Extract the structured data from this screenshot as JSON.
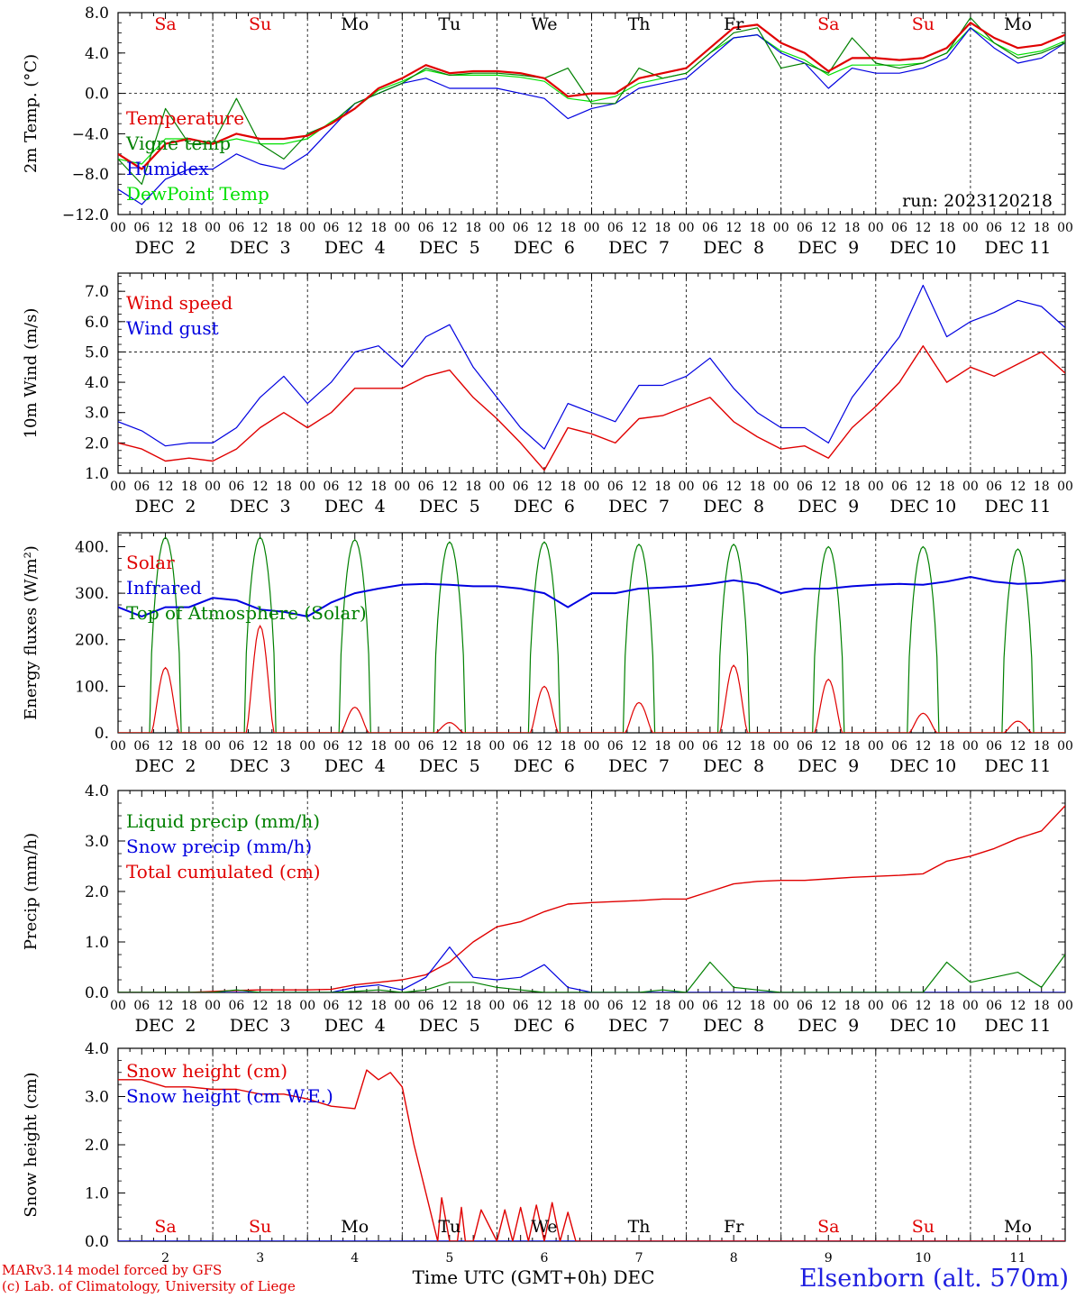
{
  "run_label": "run: 2023120218",
  "footer": {
    "line1": "MARv3.14 model forced by GFS",
    "line2": "(c) Lab. of Climatology, University of Liege"
  },
  "station": "Elsenborn (alt. 570m)",
  "xaxis_title": "Time UTC (GMT+0h) DEC",
  "hour_ticks": [
    "00",
    "06",
    "12",
    "18"
  ],
  "dates": [
    "DEC  2",
    "DEC  3",
    "DEC  4",
    "DEC  5",
    "DEC  6",
    "DEC  7",
    "DEC  8",
    "DEC  9",
    "DEC 10",
    "DEC 11"
  ],
  "day_numbers": [
    "2",
    "3",
    "4",
    "5",
    "6",
    "7",
    "8",
    "9",
    "10",
    "11"
  ],
  "weekdays": [
    {
      "label": "Sa",
      "color": "#e00000"
    },
    {
      "label": "Su",
      "color": "#e00000"
    },
    {
      "label": "Mo",
      "color": "#000000"
    },
    {
      "label": "Tu",
      "color": "#000000"
    },
    {
      "label": "We",
      "color": "#000000"
    },
    {
      "label": "Th",
      "color": "#000000"
    },
    {
      "label": "Fr",
      "color": "#000000"
    },
    {
      "label": "Sa",
      "color": "#e00000"
    },
    {
      "label": "Su",
      "color": "#e00000"
    },
    {
      "label": "Mo",
      "color": "#000000"
    }
  ],
  "chart_data": [
    {
      "type": "line",
      "ylabel": "2m Temp. (°C)",
      "ylim": [
        -12,
        8
      ],
      "yticks": [
        "8.0",
        "4.0",
        "0.0",
        "−4.0",
        "−8.0",
        "−12.0"
      ],
      "ytick_values": [
        8,
        4,
        0,
        -4,
        -8,
        -12
      ],
      "ref_line": 0,
      "x": [
        0,
        6,
        12,
        18,
        24,
        30,
        36,
        42,
        48,
        54,
        60,
        66,
        72,
        78,
        84,
        90,
        96,
        102,
        108,
        114,
        120,
        126,
        132,
        138,
        144,
        150,
        156,
        162,
        168,
        174,
        180,
        186,
        192,
        198,
        204,
        210,
        216,
        222,
        228,
        234,
        240
      ],
      "series": [
        {
          "name": "Temperature",
          "color": "#e00000",
          "width": 2.2,
          "values": [
            -6.0,
            -7.5,
            -5.0,
            -4.5,
            -5.0,
            -4.0,
            -4.5,
            -4.5,
            -4.2,
            -3.0,
            -1.5,
            0.5,
            1.5,
            2.8,
            2.0,
            2.2,
            2.2,
            2.0,
            1.5,
            -0.3,
            0.0,
            0.0,
            1.5,
            2.0,
            2.5,
            4.5,
            6.5,
            6.8,
            5.0,
            4.0,
            2.2,
            3.5,
            3.5,
            3.3,
            3.5,
            4.5,
            7.0,
            5.5,
            4.5,
            4.8,
            5.8
          ]
        },
        {
          "name": "Vigne temp",
          "color": "#008000",
          "width": 1.2,
          "values": [
            -6.5,
            -9.0,
            -1.5,
            -5.0,
            -5.0,
            -0.5,
            -5.0,
            -6.5,
            -4.0,
            -3.0,
            -1.0,
            0.0,
            1.0,
            2.5,
            1.8,
            2.0,
            2.0,
            1.8,
            1.5,
            2.5,
            -1.0,
            -1.0,
            2.5,
            1.5,
            2.0,
            4.0,
            6.0,
            6.5,
            2.5,
            3.0,
            2.0,
            5.5,
            3.0,
            2.5,
            3.0,
            4.0,
            7.5,
            5.0,
            3.5,
            4.0,
            5.0
          ]
        },
        {
          "name": "Humidex",
          "color": "#0000e0",
          "width": 1.2,
          "values": [
            -9.5,
            -11.0,
            -8.5,
            -7.5,
            -7.5,
            -6.0,
            -7.0,
            -7.5,
            -6.0,
            -3.5,
            -1.0,
            0.0,
            1.0,
            1.5,
            0.5,
            0.5,
            0.5,
            0.0,
            -0.5,
            -2.5,
            -1.5,
            -1.0,
            0.5,
            1.0,
            1.5,
            3.5,
            5.5,
            5.8,
            4.0,
            3.0,
            0.5,
            2.5,
            2.0,
            2.0,
            2.5,
            3.5,
            6.5,
            4.5,
            3.0,
            3.5,
            5.0
          ]
        },
        {
          "name": "DewPoint Temp",
          "color": "#00e000",
          "width": 1.2,
          "values": [
            -6.5,
            -7.0,
            -4.5,
            -4.5,
            -5.0,
            -4.5,
            -5.0,
            -5.0,
            -4.5,
            -2.8,
            -1.5,
            0.3,
            1.2,
            2.3,
            1.8,
            1.8,
            1.8,
            1.6,
            1.2,
            -0.5,
            -0.8,
            -0.3,
            1.0,
            1.5,
            2.0,
            4.0,
            5.5,
            5.8,
            4.2,
            3.3,
            1.8,
            2.8,
            2.8,
            2.8,
            3.0,
            4.0,
            6.5,
            5.0,
            3.8,
            4.2,
            5.2
          ]
        }
      ]
    },
    {
      "type": "line",
      "ylabel": "10m Wind (m/s)",
      "ylim": [
        1,
        7.6
      ],
      "yticks": [
        "7.0",
        "6.0",
        "5.0",
        "4.0",
        "3.0",
        "2.0",
        "1.0"
      ],
      "ytick_values": [
        7,
        6,
        5,
        4,
        3,
        2,
        1
      ],
      "ref_line": 5,
      "x": [
        0,
        6,
        12,
        18,
        24,
        30,
        36,
        42,
        48,
        54,
        60,
        66,
        72,
        78,
        84,
        90,
        96,
        102,
        108,
        114,
        120,
        126,
        132,
        138,
        144,
        150,
        156,
        162,
        168,
        174,
        180,
        186,
        192,
        198,
        204,
        210,
        216,
        222,
        228,
        234,
        240
      ],
      "series": [
        {
          "name": "Wind speed",
          "color": "#e00000",
          "width": 1.4,
          "values": [
            2.0,
            1.8,
            1.4,
            1.5,
            1.4,
            1.8,
            2.5,
            3.0,
            2.5,
            3.0,
            3.8,
            3.8,
            3.8,
            4.2,
            4.4,
            3.5,
            2.8,
            2.0,
            1.1,
            2.5,
            2.3,
            2.0,
            2.8,
            2.9,
            3.2,
            3.5,
            2.7,
            2.2,
            1.8,
            1.9,
            1.5,
            2.5,
            3.2,
            4.0,
            5.2,
            4.0,
            4.5,
            4.2,
            4.6,
            5.0,
            4.3
          ]
        },
        {
          "name": "Wind gust",
          "color": "#0000e0",
          "width": 1.2,
          "values": [
            2.7,
            2.4,
            1.9,
            2.0,
            2.0,
            2.5,
            3.5,
            4.2,
            3.3,
            4.0,
            5.0,
            5.2,
            4.5,
            5.5,
            5.9,
            4.5,
            3.5,
            2.5,
            1.8,
            3.3,
            3.0,
            2.7,
            3.9,
            3.9,
            4.2,
            4.8,
            3.8,
            3.0,
            2.5,
            2.5,
            2.0,
            3.5,
            4.5,
            5.5,
            7.2,
            5.5,
            6.0,
            6.3,
            6.7,
            6.5,
            5.8
          ]
        }
      ]
    },
    {
      "type": "line",
      "ylabel": "Energy fluxes (W/m²)",
      "ylim": [
        0,
        430
      ],
      "yticks": [
        "400.",
        "300.",
        "200.",
        "100.",
        "0."
      ],
      "ytick_values": [
        400,
        300,
        200,
        100,
        0
      ],
      "days": 10,
      "toa_peaks": [
        420,
        420,
        415,
        410,
        410,
        405,
        405,
        400,
        400,
        395
      ],
      "solar_peaks": [
        140,
        230,
        55,
        22,
        100,
        65,
        145,
        115,
        42,
        25
      ],
      "series": [
        {
          "name": "Solar",
          "color": "#e00000",
          "width": 1.2
        },
        {
          "name": "Infrared",
          "color": "#0000e0",
          "width": 2.0,
          "x": [
            0,
            6,
            12,
            18,
            24,
            30,
            36,
            42,
            48,
            54,
            60,
            66,
            72,
            78,
            84,
            90,
            96,
            102,
            108,
            114,
            120,
            126,
            132,
            138,
            144,
            150,
            156,
            162,
            168,
            174,
            180,
            186,
            192,
            198,
            204,
            210,
            216,
            222,
            228,
            234,
            240
          ],
          "values": [
            270,
            250,
            270,
            270,
            290,
            285,
            265,
            260,
            250,
            280,
            300,
            310,
            318,
            320,
            318,
            315,
            315,
            310,
            300,
            270,
            300,
            300,
            310,
            312,
            315,
            320,
            328,
            320,
            300,
            310,
            310,
            315,
            318,
            320,
            318,
            325,
            335,
            325,
            320,
            322,
            328
          ]
        },
        {
          "name": "Top of Atmosphere (Solar)",
          "color": "#008000",
          "width": 1.2
        }
      ]
    },
    {
      "type": "line",
      "ylabel": "Precip (mm/h)",
      "ylim": [
        0,
        4
      ],
      "yticks": [
        "4.0",
        "3.0",
        "2.0",
        "1.0",
        "0.0"
      ],
      "ytick_values": [
        4,
        3,
        2,
        1,
        0
      ],
      "x": [
        0,
        6,
        12,
        18,
        24,
        30,
        36,
        42,
        48,
        54,
        60,
        66,
        72,
        78,
        84,
        90,
        96,
        102,
        108,
        114,
        120,
        126,
        132,
        138,
        144,
        150,
        156,
        162,
        168,
        174,
        180,
        186,
        192,
        198,
        204,
        210,
        216,
        222,
        228,
        234,
        240
      ],
      "series": [
        {
          "name": "Liquid precip (mm/h)",
          "color": "#008000",
          "width": 1.2,
          "values": [
            0,
            0,
            0,
            0,
            0,
            0.05,
            0,
            0,
            0,
            0,
            0.02,
            0.05,
            0,
            0.05,
            0.2,
            0.2,
            0.1,
            0.05,
            0,
            0,
            0,
            0,
            0,
            0.05,
            0,
            0.6,
            0.1,
            0.05,
            0,
            0,
            0,
            0,
            0,
            0,
            0,
            0.6,
            0.2,
            0.3,
            0.4,
            0.1,
            0.75
          ]
        },
        {
          "name": "Snow precip (mm/h)",
          "color": "#0000e0",
          "width": 1.2,
          "values": [
            0,
            0,
            0,
            0,
            0,
            0,
            0,
            0,
            0,
            0,
            0.1,
            0.15,
            0.05,
            0.3,
            0.9,
            0.3,
            0.25,
            0.3,
            0.55,
            0.1,
            0,
            0,
            0,
            0,
            0,
            0,
            0,
            0,
            0,
            0,
            0,
            0,
            0,
            0,
            0,
            0,
            0,
            0,
            0,
            0,
            0
          ]
        },
        {
          "name": "Total cumulated (cm)",
          "color": "#e00000",
          "width": 1.4,
          "values": [
            0,
            0,
            0,
            0,
            0.02,
            0.04,
            0.05,
            0.05,
            0.05,
            0.06,
            0.15,
            0.2,
            0.25,
            0.35,
            0.6,
            1.0,
            1.3,
            1.4,
            1.6,
            1.75,
            1.78,
            1.8,
            1.82,
            1.85,
            1.85,
            2.0,
            2.15,
            2.2,
            2.22,
            2.22,
            2.25,
            2.28,
            2.3,
            2.32,
            2.35,
            2.6,
            2.7,
            2.85,
            3.05,
            3.2,
            3.7
          ]
        }
      ]
    },
    {
      "type": "line",
      "ylabel": "Snow height (cm)",
      "ylim": [
        0,
        4
      ],
      "yticks": [
        "4.0",
        "3.0",
        "2.0",
        "1.0",
        "0.0"
      ],
      "ytick_values": [
        4,
        3,
        2,
        1,
        0
      ],
      "series": [
        {
          "name": "Snow height (cm)",
          "color": "#e00000",
          "width": 1.4,
          "x": [
            0,
            6,
            12,
            18,
            24,
            30,
            36,
            42,
            48,
            54,
            60,
            63,
            66,
            69,
            72,
            75,
            78,
            81,
            82,
            84,
            86,
            87,
            88,
            90,
            92,
            96,
            98,
            100,
            102,
            104,
            106,
            108,
            110,
            112,
            114,
            116,
            120,
            180,
            240
          ],
          "values": [
            3.35,
            3.35,
            3.2,
            3.2,
            3.15,
            3.15,
            3.05,
            3.05,
            2.95,
            2.8,
            2.75,
            3.55,
            3.35,
            3.5,
            3.2,
            2.0,
            1.0,
            0.0,
            0.9,
            0,
            0,
            0.7,
            0,
            0,
            0.65,
            0,
            0.65,
            0,
            0.7,
            0,
            0.75,
            0,
            0.8,
            0,
            0.6,
            0,
            0,
            0,
            0
          ]
        },
        {
          "name": "Snow height (cm W.E.)",
          "color": "#0000e0",
          "width": 1.4,
          "x": [
            0,
            120,
            240
          ],
          "values": [
            0,
            0,
            0
          ]
        }
      ]
    }
  ]
}
